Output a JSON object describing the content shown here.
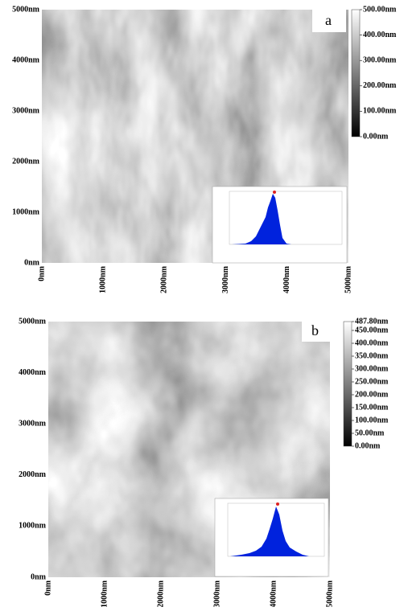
{
  "panels": [
    {
      "label": "a",
      "y_axis": [
        "5000nm",
        "4000nm",
        "3000nm",
        "2000nm",
        "1000nm",
        "0nm"
      ],
      "x_axis": [
        "0nm",
        "1000nm",
        "2000nm",
        "3000nm",
        "4000nm",
        "5000nm"
      ],
      "colorbar": [
        "500.00nm",
        "400.00nm",
        "300.00nm",
        "200.00nm",
        "100.00nm",
        "0.00nm"
      ]
    },
    {
      "label": "b",
      "y_axis": [
        "5000nm",
        "4000nm",
        "3000nm",
        "2000nm",
        "1000nm",
        "0nm"
      ],
      "x_axis": [
        "0nm",
        "1000nm",
        "2000nm",
        "3000nm",
        "4000nm",
        "5000nm"
      ],
      "colorbar": [
        "487.80nm",
        "450.00nm",
        "400.00nm",
        "350.00nm",
        "300.00nm",
        "250.00nm",
        "200.00nm",
        "150.00nm",
        "100.00nm",
        "50.00nm",
        "0.00nm"
      ]
    }
  ]
}
